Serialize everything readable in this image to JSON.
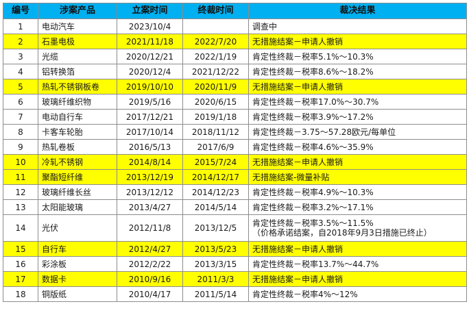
{
  "colors": {
    "header_bg": "#00b0f0",
    "highlight_bg": "#ffff00",
    "border": "#8c8c8c"
  },
  "headers": [
    "编号",
    "涉案产品",
    "立案时间",
    "终裁时间",
    "裁决结果"
  ],
  "rows": [
    {
      "no": "1",
      "product": "电动汽车",
      "filed": "2023/10/4",
      "final": "",
      "result": "调查中",
      "highlight": false
    },
    {
      "no": "2",
      "product": "石墨电极",
      "filed": "2021/11/18",
      "final": "2022/7/20",
      "result": "无措施结案－申请人撤销",
      "highlight": true
    },
    {
      "no": "3",
      "product": "光缆",
      "filed": "2020/12/21",
      "final": "2022/1/19",
      "result": "肯定性终裁－税率5.1%～10.3%",
      "highlight": false
    },
    {
      "no": "4",
      "product": "铝转换箔",
      "filed": "2020/12/4",
      "final": "2021/12/22",
      "result": "肯定性终裁－税率8.6%～18.2%",
      "highlight": false
    },
    {
      "no": "5",
      "product": "热轧不锈钢板卷",
      "filed": "2019/10/10",
      "final": "2020/11/9",
      "result": "无措施结案－申请人撤销",
      "highlight": true
    },
    {
      "no": "6",
      "product": "玻璃纤维织物",
      "filed": "2019/5/16",
      "final": "2020/6/15",
      "result": "肯定性终裁－税率17.0%～30.7%",
      "highlight": false
    },
    {
      "no": "7",
      "product": "电动自行车",
      "filed": "2017/12/21",
      "final": "2019/1/18",
      "result": "肯定性终裁－税率3.9%～17.2%",
      "highlight": false
    },
    {
      "no": "8",
      "product": "卡客车轮胎",
      "filed": "2017/10/14",
      "final": "2018/11/12",
      "result": "肯定性终裁－3.75～57.28欧元/每单位",
      "highlight": false
    },
    {
      "no": "9",
      "product": "热轧卷板",
      "filed": "2016/5/13",
      "final": "2017/6/9",
      "result": "肯定性终裁－税率4.6%～35.9%",
      "highlight": false
    },
    {
      "no": "10",
      "product": "冷轧不锈钢",
      "filed": "2014/8/14",
      "final": "2015/7/24",
      "result": "无措施结案－申请人撤销",
      "highlight": true
    },
    {
      "no": "11",
      "product": "聚酯短纤维",
      "filed": "2013/12/19",
      "final": "2014/12/17",
      "result": "无措施结案-微量补贴",
      "highlight": true
    },
    {
      "no": "12",
      "product": "玻璃纤维长丝",
      "filed": "2013/12/12",
      "final": "2014/12/23",
      "result": "肯定性终裁－税率4.9%～10.3%",
      "highlight": false
    },
    {
      "no": "13",
      "product": "太阳能玻璃",
      "filed": "2013/4/27",
      "final": "2014/5/14",
      "result": "肯定性终裁－税率3.2%～17.1%",
      "highlight": false
    },
    {
      "no": "14",
      "product": "光伏",
      "filed": "2012/11/8",
      "final": "2013/12/5",
      "result": "肯定性终裁－税率3.5%～11.5%",
      "result_line2": "（价格承诺结案，自2018年9月3日措施已终止）",
      "highlight": false
    },
    {
      "no": "15",
      "product": "自行车",
      "filed": "2012/4/27",
      "final": "2013/5/23",
      "result": "无措施结案－申请人撤销",
      "highlight": true
    },
    {
      "no": "16",
      "product": "彩涂板",
      "filed": "2012/2/22",
      "final": "2013/3/15",
      "result": "肯定性终裁－税率13.7%～44.7%",
      "highlight": false
    },
    {
      "no": "17",
      "product": "数据卡",
      "filed": "2010/9/16",
      "final": "2011/3/3",
      "result": "无措施结案－申请人撤销",
      "highlight": true
    },
    {
      "no": "18",
      "product": "铜版纸",
      "filed": "2010/4/17",
      "final": "2011/5/14",
      "result": "肯定性终裁－税率4%～12%",
      "highlight": false
    }
  ]
}
